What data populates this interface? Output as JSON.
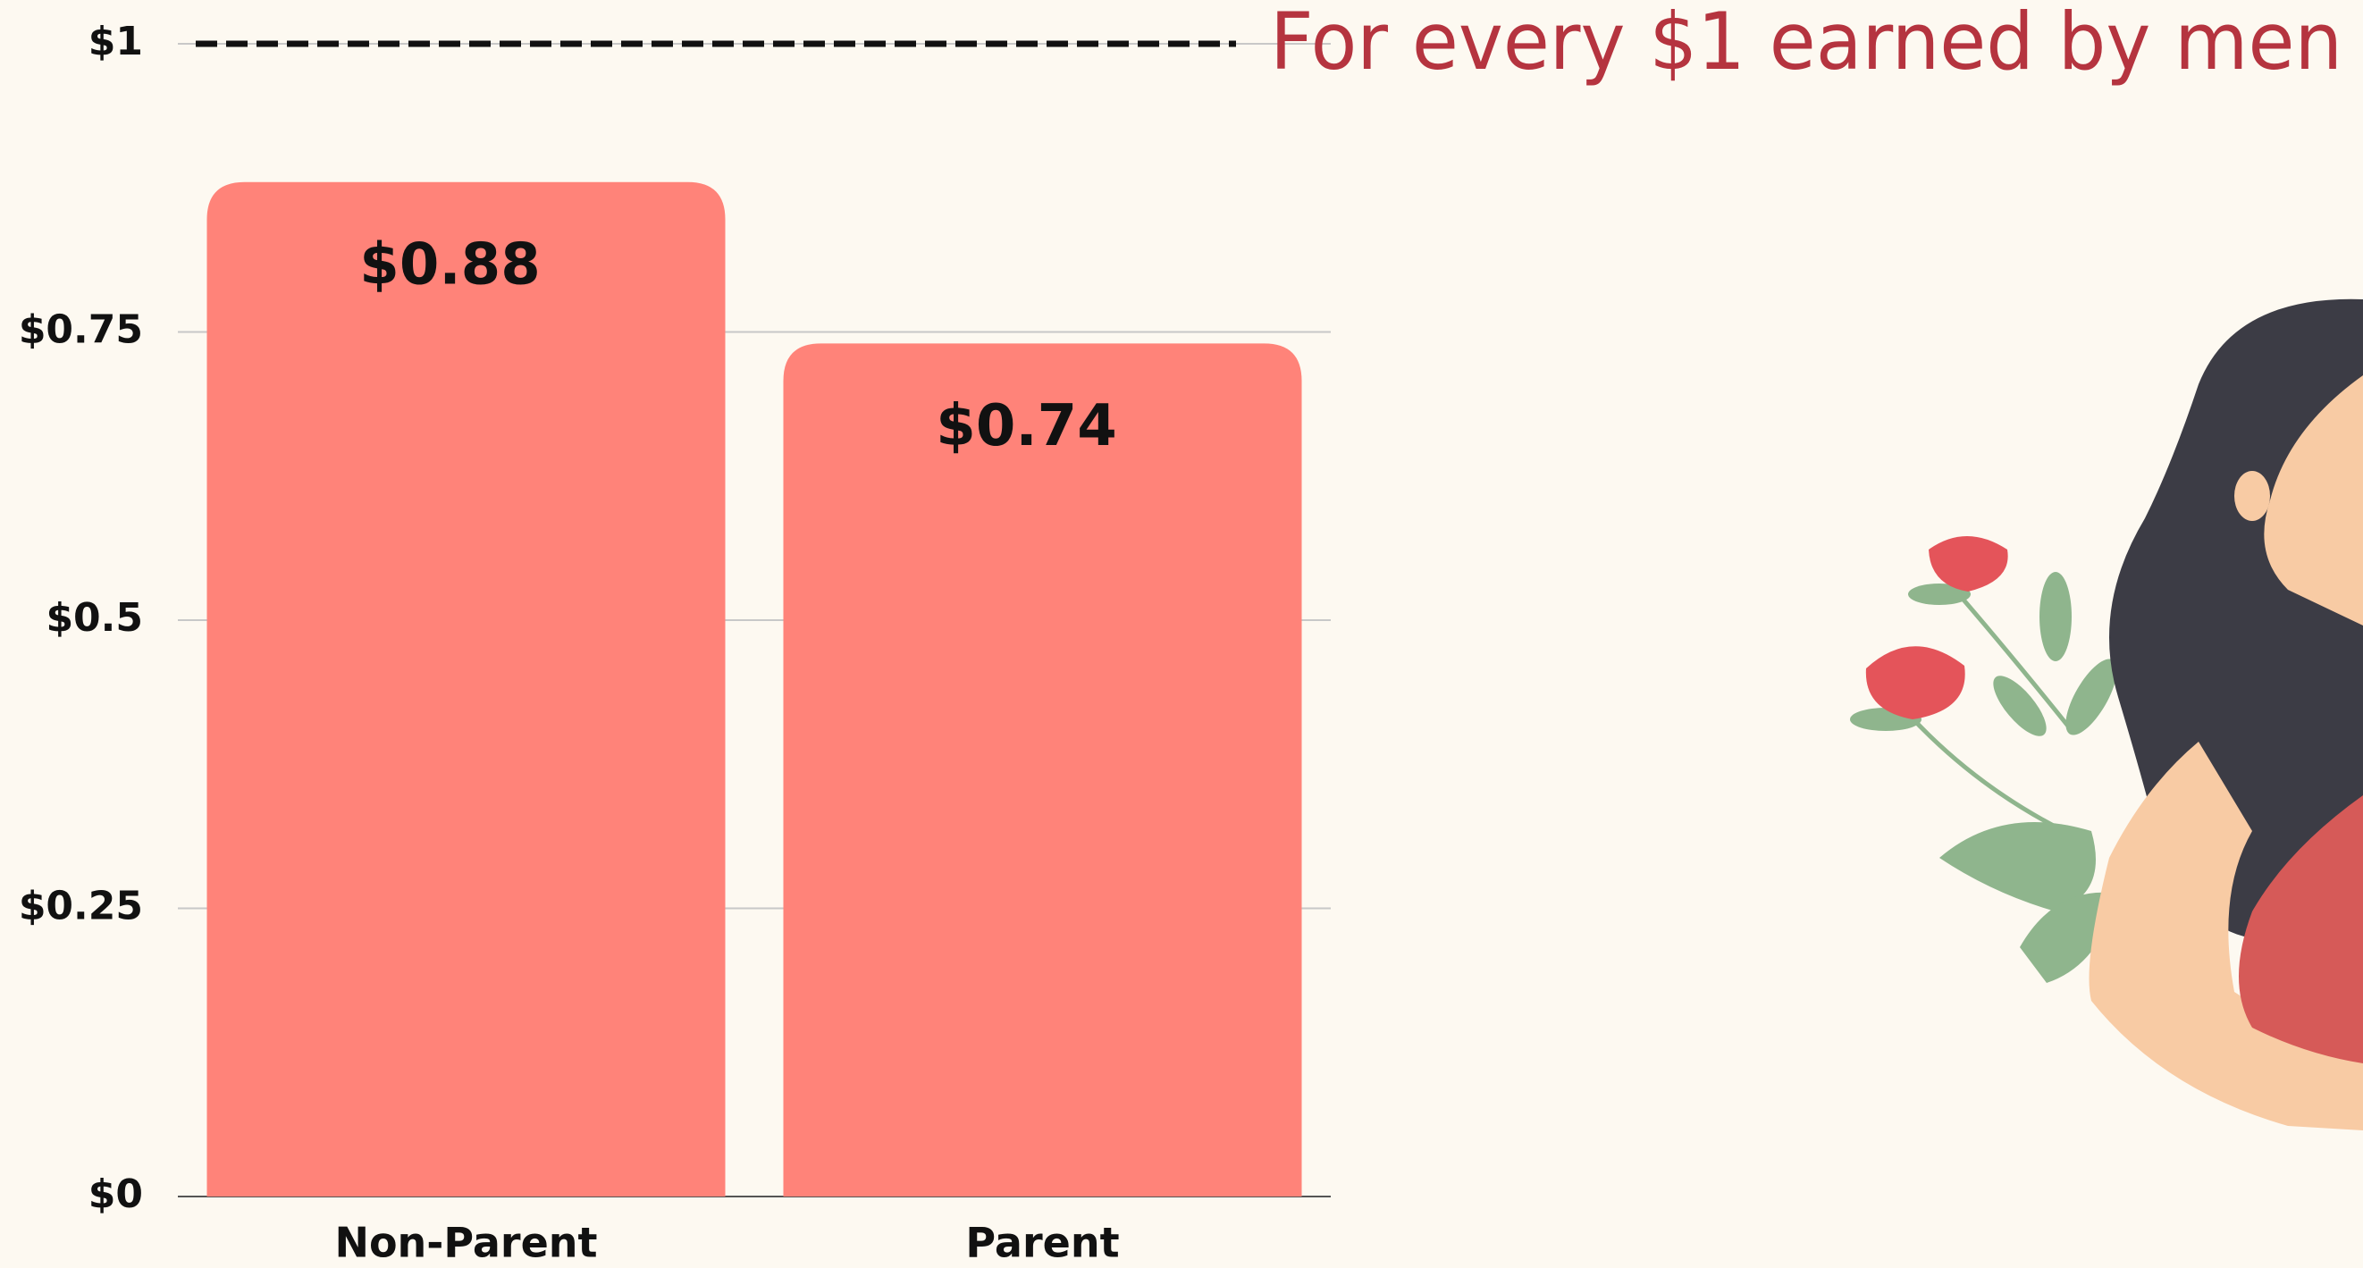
{
  "chart_data": {
    "type": "bar",
    "categories": [
      "Non-Parent",
      "Parent"
    ],
    "values": [
      0.88,
      0.74
    ],
    "value_labels": [
      "$0.88",
      "$0.74"
    ],
    "color": "#ff8379",
    "ylim": [
      0,
      1
    ],
    "yticks": [
      {
        "value": 0,
        "label": "$0"
      },
      {
        "value": 0.25,
        "label": "$0.25"
      },
      {
        "value": 0.5,
        "label": "$0.5"
      },
      {
        "value": 0.75,
        "label": "$0.75"
      },
      {
        "value": 1,
        "label": "$1"
      }
    ],
    "grid": true,
    "reference_line": {
      "value": 1,
      "label": "For every $1 earned by men"
    }
  }
}
